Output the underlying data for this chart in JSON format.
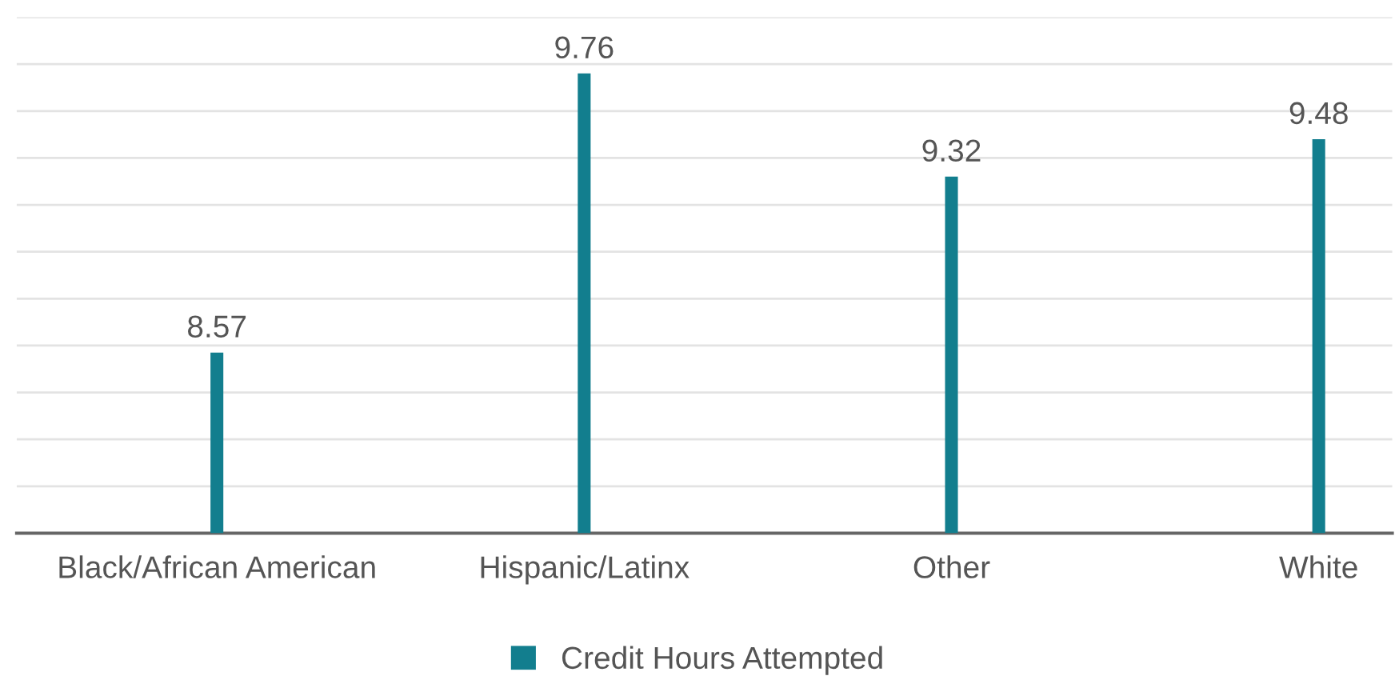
{
  "chart_data": {
    "type": "bar",
    "categories": [
      "Black/African American",
      "Hispanic/Latinx",
      "Other",
      "White"
    ],
    "series": [
      {
        "name": "Credit Hours Attempted",
        "color": "#127e8e",
        "values": [
          8.57,
          9.76,
          9.32,
          9.48
        ]
      }
    ],
    "ylim": [
      7.8,
      10.0
    ],
    "yticks": [
      {
        "value": 7.8,
        "label": null
      },
      {
        "value": 8.0,
        "label": null
      },
      {
        "value": 8.2,
        "label": null
      },
      {
        "value": 8.4,
        "label": null
      },
      {
        "value": 8.6,
        "label": null
      },
      {
        "value": 8.8,
        "label": null
      },
      {
        "value": 9.0,
        "label": null
      },
      {
        "value": 9.2,
        "label": null
      },
      {
        "value": 9.4,
        "label": null
      },
      {
        "value": 9.6,
        "label": null
      },
      {
        "value": 9.8,
        "label": null
      },
      {
        "value": 10.0,
        "label": null
      }
    ],
    "tick_labels": "x",
    "grid": "y",
    "legend": "bottom",
    "data_labels": true
  }
}
